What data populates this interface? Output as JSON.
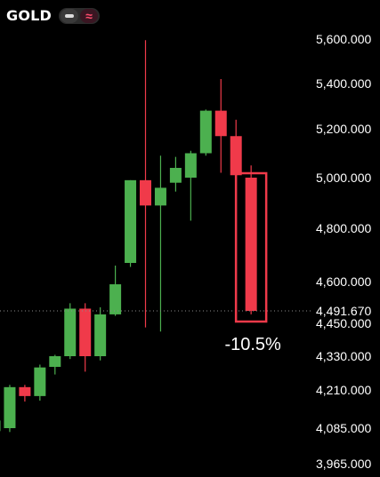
{
  "header": {
    "symbol": "GOLD",
    "toggle": {
      "left_icon": "dash-icon",
      "right_icon": "wave-icon",
      "right_glyph": "≈"
    }
  },
  "colors": {
    "background": "#000000",
    "up": "#4cb04f",
    "down": "#f03a4a",
    "highlight_border": "#f03a4a",
    "text": "#ffffff"
  },
  "chart_data": {
    "type": "candlestick",
    "title": "",
    "y_axis_labels": [
      "5,600.000",
      "5,400.000",
      "5,200.000",
      "5,000.000",
      "4,800.000",
      "4,600.000",
      "4,491.670",
      "4,450.000",
      "4,330.000",
      "4,210.000",
      "4,085.000",
      "3,965.000"
    ],
    "y_axis_values": [
      5600,
      5400,
      5200,
      5000,
      4800,
      4600,
      4491.67,
      4450,
      4330,
      4210,
      4085,
      3965
    ],
    "current_price_label": "4,491.670",
    "candles": [
      {
        "open": 4075,
        "high": 4110,
        "low": 4045,
        "close": 4110,
        "dir": "up"
      },
      {
        "open": 4085,
        "high": 4228,
        "low": 4072,
        "close": 4220,
        "dir": "up"
      },
      {
        "open": 4220,
        "high": 4228,
        "low": 4172,
        "close": 4190,
        "dir": "down"
      },
      {
        "open": 4190,
        "high": 4300,
        "low": 4175,
        "close": 4290,
        "dir": "up"
      },
      {
        "open": 4292,
        "high": 4335,
        "low": 4265,
        "close": 4330,
        "dir": "up"
      },
      {
        "open": 4330,
        "high": 4520,
        "low": 4320,
        "close": 4500,
        "dir": "up"
      },
      {
        "open": 4500,
        "high": 4520,
        "low": 4275,
        "close": 4330,
        "dir": "down"
      },
      {
        "open": 4330,
        "high": 4505,
        "low": 4315,
        "close": 4480,
        "dir": "up"
      },
      {
        "open": 4480,
        "high": 4660,
        "low": 4475,
        "close": 4590,
        "dir": "up"
      },
      {
        "open": 4670,
        "high": 4990,
        "low": 4655,
        "close": 4990,
        "dir": "up"
      },
      {
        "open": 4990,
        "high": 5595,
        "low": 4435,
        "close": 4890,
        "dir": "down"
      },
      {
        "open": 4890,
        "high": 5090,
        "low": 4420,
        "close": 4960,
        "dir": "up"
      },
      {
        "open": 4980,
        "high": 5085,
        "low": 4945,
        "close": 5040,
        "dir": "up"
      },
      {
        "open": 5000,
        "high": 5110,
        "low": 4830,
        "close": 5100,
        "dir": "up"
      },
      {
        "open": 5100,
        "high": 5285,
        "low": 5090,
        "close": 5280,
        "dir": "up"
      },
      {
        "open": 5280,
        "high": 5420,
        "low": 5020,
        "close": 5170,
        "dir": "down"
      },
      {
        "open": 5170,
        "high": 5240,
        "low": 4990,
        "close": 5010,
        "dir": "down"
      },
      {
        "open": 5000,
        "high": 5050,
        "low": 4480,
        "close": 4491.67,
        "dir": "down"
      }
    ],
    "annotation": {
      "text": "-10.5%",
      "candle_index": 17
    }
  }
}
